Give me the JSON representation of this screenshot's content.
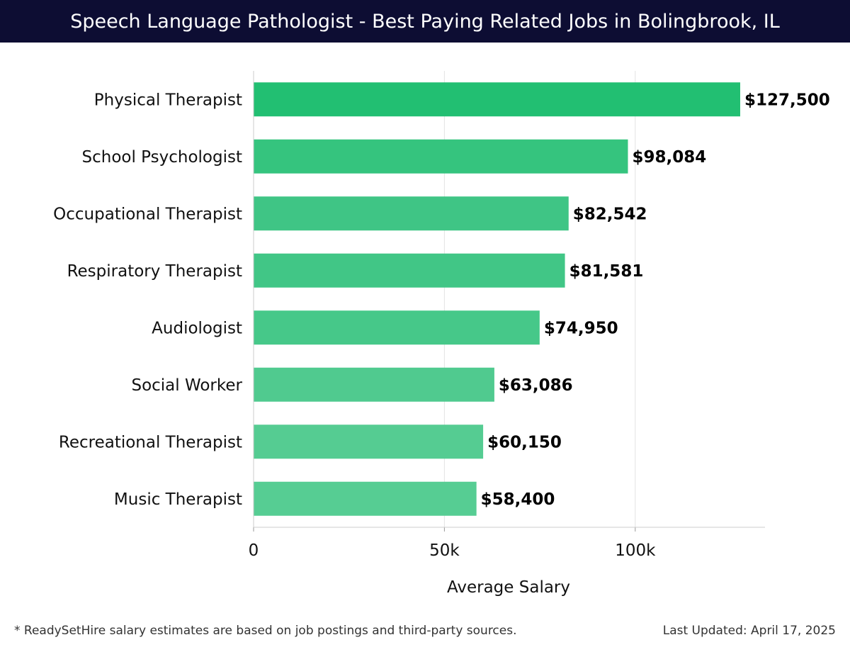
{
  "header": {
    "title": "Speech Language Pathologist - Best Paying Related Jobs in Bolingbrook, IL"
  },
  "chart_data": {
    "type": "bar",
    "orientation": "horizontal",
    "categories": [
      "Physical Therapist",
      "School Psychologist",
      "Occupational Therapist",
      "Respiratory Therapist",
      "Audiologist",
      "Social Worker",
      "Recreational Therapist",
      "Music Therapist"
    ],
    "values": [
      127500,
      98084,
      82542,
      81581,
      74950,
      63086,
      60150,
      58400
    ],
    "value_labels": [
      "$127,500",
      "$98,084",
      "$82,542",
      "$81,581",
      "$74,950",
      "$63,086",
      "$60,150",
      "$58,400"
    ],
    "xlabel": "Average Salary",
    "ylabel": "",
    "xlim": [
      0,
      134000
    ],
    "xticks": [
      0,
      50000,
      100000
    ],
    "xtick_labels": [
      "0",
      "50k",
      "100k"
    ],
    "grid": true,
    "bar_colors": [
      "#22bf72",
      "#35c47e",
      "#3fc585",
      "#41c686",
      "#46c889",
      "#50ca8f",
      "#55cc92",
      "#56cd93"
    ]
  },
  "footer": {
    "note": "* ReadySetHire salary estimates are based on job postings and third-party sources.",
    "updated": "Last Updated: April 17, 2025"
  }
}
